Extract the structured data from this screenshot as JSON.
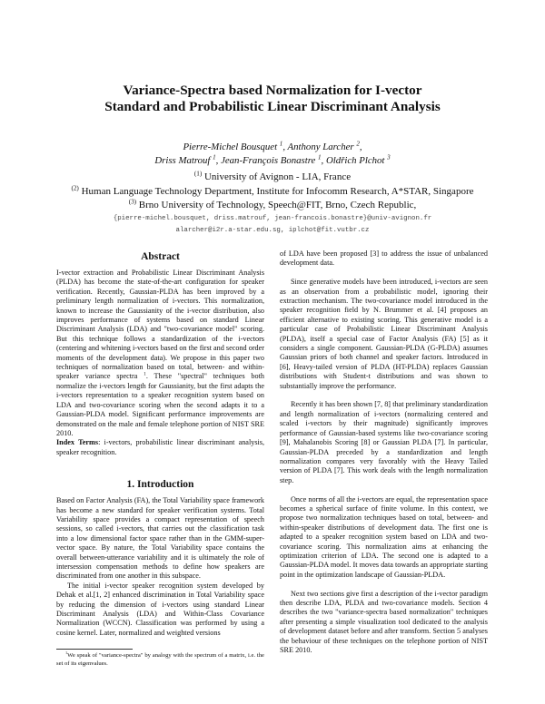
{
  "title": {
    "line1": "Variance-Spectra based Normalization for I-vector",
    "line2": "Standard and Probabilistic Linear Discriminant Analysis"
  },
  "authors": [
    {
      "name": "Pierre-Michel Bousquet",
      "aff": "1"
    },
    {
      "name": "Anthony Larcher",
      "aff": "2"
    },
    {
      "name": "Driss Matrouf",
      "aff": "1"
    },
    {
      "name": "Jean-François Bonastre",
      "aff": "1"
    },
    {
      "name": "Oldřich Plchot",
      "aff": "3"
    }
  ],
  "affiliations": [
    {
      "mark": "(1)",
      "text": "University of Avignon - LIA, France"
    },
    {
      "mark": "(2)",
      "text": "Human Language Technology Department, Institute for Infocomm Research, A*STAR, Singapore"
    },
    {
      "mark": "(3)",
      "text": "Brno University of Technology, Speech@FIT, Brno, Czech Republic,"
    }
  ],
  "emails": {
    "line1": "{pierre-michel.bousquet, driss.matrouf, jean-francois.bonastre}@univ-avignon.fr",
    "line2": "alarcher@i2r.a-star.edu.sg, iplchot@fit.vutbr.cz"
  },
  "abstract": {
    "heading": "Abstract",
    "text": "I-vector extraction and Probabilistic Linear Discriminant Analysis (PLDA) has become the state-of-the-art configuration for speaker verification. Recently, Gaussian-PLDA has been improved by a preliminary length normalization of i-vectors. This normalization, known to increase the Gaussianity of the i-vector distribution, also improves performance of systems based on standard Linear Discriminant Analysis (LDA) and \"two-covariance model\" scoring. But this technique follows a standardization of the i-vectors (centering and whitening i-vectors based on the first and second order moments of the development data). We propose in this paper two techniques of normalization based on total, between- and within-speaker variance spectra",
    "fn_mark": "1",
    "text_after": ". These \"spectral\" techniques both normalize the i-vectors length for Gaussianity, but the first adapts the i-vectors representation to a speaker recognition system based on LDA and two-covariance scoring when the second adapts it to a Gaussian-PLDA model. Significant performance improvements are demonstrated on the male and female telephone portion of NIST SRE 2010.",
    "index_terms_label": "Index Terms",
    "index_terms": ": i-vectors, probabilistic linear discriminant analysis, speaker recognition."
  },
  "introduction": {
    "heading": "1.  Introduction",
    "paragraphs": [
      "Based on Factor Analysis (FA), the Total Variability space framework has become a new standard for speaker verification systems. Total Variability space provides a compact representation of speech sessions, so called i-vectors, that carries out the classification task into a low dimensional factor space rather than in the GMM-super-vector space. By nature, the Total Variability space contains the overall between-utterance variability and it is ultimately the role of intersession compensation methods to define how speakers are discriminated from one another in this subspace.",
      "The initial i-vector speaker recognition system developed by Dehak et al.[1, 2] enhanced discrimination in Total Variability space by reducing the dimension of i-vectors using standard Linear Discriminant Analysis (LDA) and Within-Class Covariance Normalization (WCCN). Classification was performed by using a cosine kernel. Later, normalized and weighted versions"
    ],
    "right_paragraphs": [
      "of LDA have been proposed [3] to address the issue of unbalanced development data.",
      "Since generative models have been introduced, i-vectors are seen as an observation from a probabilistic model, ignoring their extraction mechanism. The two-covariance model introduced in the speaker recognition field by N. Brummer et al. [4] proposes an efficient alternative to existing scoring. This generative model is a particular case of Probabilistic Linear Discriminant Analysis (PLDA), itself a special case of Factor Analysis (FA) [5] as it considers a single component. Gaussian-PLDA (G-PLDA) assumes Gaussian priors of both channel and speaker factors. Introduced in [6], Heavy-tailed version of PLDA (HT-PLDA) replaces Gaussian distributions with Student-t distributions and was shown to substantially improve the performance.",
      "Recently it has been shown [7, 8] that preliminary standardization and length normalization of i-vectors (normalizing centered and scaled i-vectors by their magnitude) significantly improves performance of Gaussian-based systems like two-covariance scoring [9], Mahalanobis Scoring [8] or Gaussian PLDA [7]. In particular, Gaussian-PLDA preceded by a standardization and length normalization compares very favorably with the Heavy Tailed version of PLDA [7]. This work deals with the length normalization step.",
      "Once norms of all the i-vectors are equal, the representation space becomes a spherical surface of finite volume. In this context, we propose two normalization techniques based on total, between- and within-speaker distributions of development data. The first one is adapted to a speaker recognition system based on LDA and two-covariance scoring. This normalization aims at enhancing the optimization criterion of LDA. The second one is adapted to a Gaussian-PLDA model. It moves data towards an appropriate starting point in the optimization landscape of Gaussian-PLDA.",
      "Next two sections give first a description of the i-vector paradigm then describe LDA, PLDA and two-covariance models. Section 4 describes the two \"variance-spectra based normalization\" techniques after presenting a simple visualization tool dedicated to the analysis of development dataset before and after transform. Section 5 analyses the behaviour of these techniques on the telephone portion of NIST SRE 2010."
    ]
  },
  "footnote": {
    "mark": "1",
    "text": "We speak of \"variance-spectra\" by analogy with the spectrum of a matrix, i.e. the set of its eigenvalues."
  }
}
